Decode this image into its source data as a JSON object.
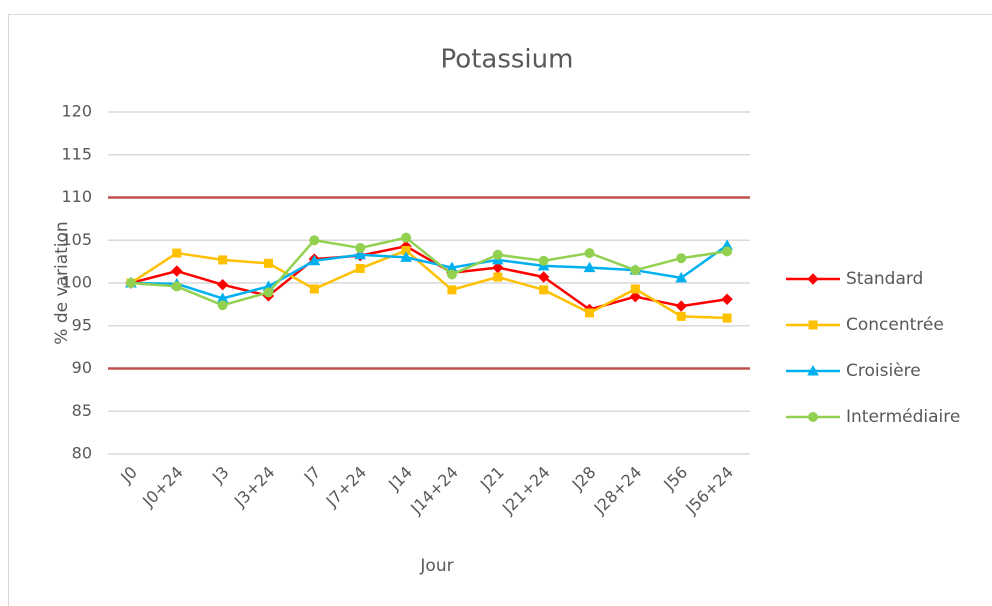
{
  "chart_data": {
    "type": "line",
    "title": "Potassium",
    "x_label": "Jour",
    "y_label": "% de variation",
    "categories": [
      "J0",
      "J0+24",
      "J3",
      "J3+24",
      "J7",
      "J7+24",
      "J14",
      "J14+24",
      "J21",
      "J21+24",
      "J28",
      "J28+24",
      "J56",
      "J56+24"
    ],
    "series": [
      {
        "name": "Standard",
        "color": "#ff0000",
        "marker": "diamond",
        "values": [
          100,
          101.4,
          99.8,
          98.5,
          102.8,
          103.2,
          104.3,
          101.2,
          101.8,
          100.7,
          96.9,
          98.4,
          97.3,
          98.1
        ]
      },
      {
        "name": "Concentrée",
        "color": "#ffc000",
        "marker": "square",
        "values": [
          100,
          103.5,
          102.7,
          102.3,
          99.3,
          101.7,
          103.8,
          99.2,
          100.7,
          99.2,
          96.5,
          99.3,
          96.1,
          95.9
        ]
      },
      {
        "name": "Croisière",
        "color": "#00b0f0",
        "marker": "triangle",
        "values": [
          100,
          99.9,
          98.2,
          99.6,
          102.6,
          103.3,
          103.0,
          101.8,
          102.7,
          102.0,
          101.8,
          101.5,
          100.6,
          104.4
        ]
      },
      {
        "name": "Intermédiaire",
        "color": "#92d050",
        "marker": "circle",
        "values": [
          100,
          99.6,
          97.4,
          98.9,
          105.0,
          104.1,
          105.3,
          101.0,
          103.3,
          102.6,
          103.5,
          101.5,
          102.9,
          103.7
        ]
      }
    ],
    "reference_lines": [
      110,
      90
    ],
    "reference_color": "#c0504d",
    "ylim": [
      80,
      120
    ],
    "yticks": [
      80,
      85,
      90,
      95,
      100,
      105,
      110,
      115,
      120
    ],
    "grid": true,
    "legend": "right"
  }
}
